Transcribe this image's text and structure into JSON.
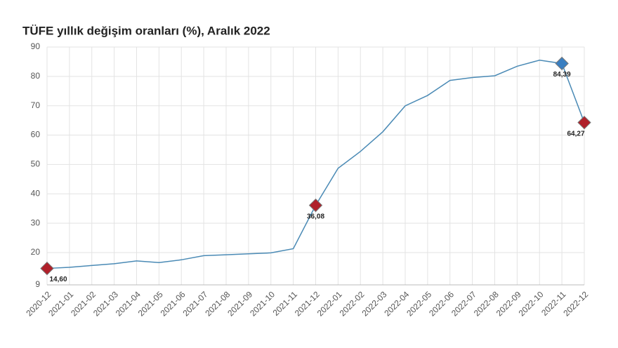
{
  "chart_data": {
    "type": "line",
    "title": "TÜFE yıllık değişim oranları (%), Aralık 2022",
    "categories": [
      "2020-12",
      "2021-01",
      "2021-02",
      "2021-03",
      "2021-04",
      "2021-05",
      "2021-06",
      "2021-07",
      "2021-08",
      "2021-09",
      "2021-10",
      "2021-11",
      "2021-12",
      "2022-01",
      "2022-02",
      "2022-03",
      "2022-04",
      "2022-05",
      "2022-06",
      "2022-07",
      "2022-08",
      "2022-09",
      "2022-10",
      "2022-11",
      "2022-12"
    ],
    "values": [
      14.6,
      14.97,
      15.61,
      16.19,
      17.14,
      16.59,
      17.53,
      18.95,
      19.25,
      19.58,
      19.89,
      21.31,
      36.08,
      48.69,
      54.44,
      61.14,
      69.97,
      73.5,
      78.62,
      79.6,
      80.21,
      83.45,
      85.51,
      84.39,
      64.27
    ],
    "value_labels": [
      "14,60",
      null,
      null,
      null,
      null,
      null,
      null,
      null,
      null,
      null,
      null,
      null,
      "36,08",
      null,
      null,
      null,
      null,
      null,
      null,
      null,
      null,
      null,
      null,
      "84,39",
      "64,27"
    ],
    "marker_colors": [
      "#b0202a",
      null,
      null,
      null,
      null,
      null,
      null,
      null,
      null,
      null,
      null,
      null,
      "#b0202a",
      null,
      null,
      null,
      null,
      null,
      null,
      null,
      null,
      null,
      null,
      "#3a7fc1",
      "#b0202a"
    ],
    "color": "#4a8ab5",
    "ylim": [
      9,
      90
    ],
    "yticks": [
      9,
      20,
      30,
      40,
      50,
      60,
      70,
      80,
      90
    ],
    "grid": true
  }
}
